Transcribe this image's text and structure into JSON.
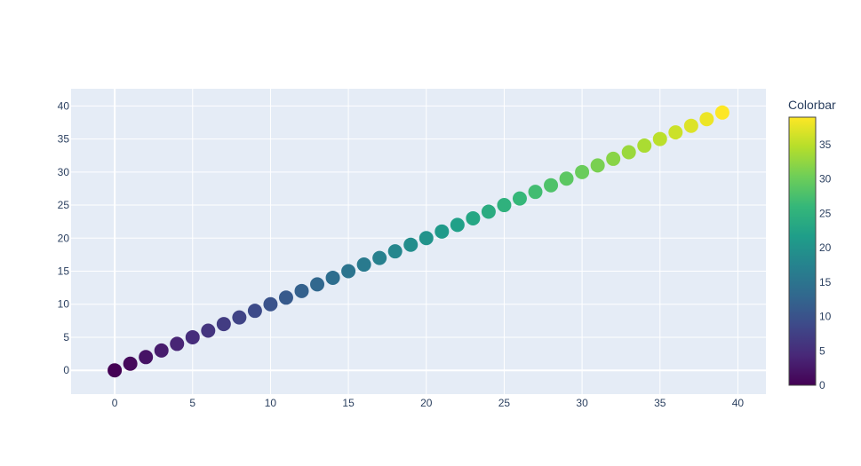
{
  "chart_data": {
    "type": "scatter",
    "title": "",
    "xlabel": "",
    "ylabel": "",
    "xlim": [
      -2.8,
      41.8
    ],
    "ylim": [
      -3.6,
      42.6
    ],
    "x_ticks": [
      0,
      5,
      10,
      15,
      20,
      25,
      30,
      35,
      40
    ],
    "y_ticks": [
      0,
      5,
      10,
      15,
      20,
      25,
      30,
      35,
      40
    ],
    "grid": true,
    "plot_background": "#e5ecf6",
    "colorscale": "Viridis",
    "colorscale_stops": [
      "#440154",
      "#482878",
      "#3e4989",
      "#31688e",
      "#26828e",
      "#1f9e89",
      "#35b779",
      "#6ece58",
      "#b5de2b",
      "#fde725"
    ],
    "colorbar": {
      "title": "Colorbar",
      "range": [
        0,
        39
      ],
      "ticks": [
        0,
        5,
        10,
        15,
        20,
        25,
        30,
        35
      ]
    },
    "series": [
      {
        "x": [
          0,
          1,
          2,
          3,
          4,
          5,
          6,
          7,
          8,
          9,
          10,
          11,
          12,
          13,
          14,
          15,
          16,
          17,
          18,
          19,
          20,
          21,
          22,
          23,
          24,
          25,
          26,
          27,
          28,
          29,
          30,
          31,
          32,
          33,
          34,
          35,
          36,
          37,
          38,
          39
        ],
        "y": [
          0,
          1,
          2,
          3,
          4,
          5,
          6,
          7,
          8,
          9,
          10,
          11,
          12,
          13,
          14,
          15,
          16,
          17,
          18,
          19,
          20,
          21,
          22,
          23,
          24,
          25,
          26,
          27,
          28,
          29,
          30,
          31,
          32,
          33,
          34,
          35,
          36,
          37,
          38,
          39
        ],
        "color": [
          0,
          1,
          2,
          3,
          4,
          5,
          6,
          7,
          8,
          9,
          10,
          11,
          12,
          13,
          14,
          15,
          16,
          17,
          18,
          19,
          20,
          21,
          22,
          23,
          24,
          25,
          26,
          27,
          28,
          29,
          30,
          31,
          32,
          33,
          34,
          35,
          36,
          37,
          38,
          39
        ]
      }
    ]
  }
}
